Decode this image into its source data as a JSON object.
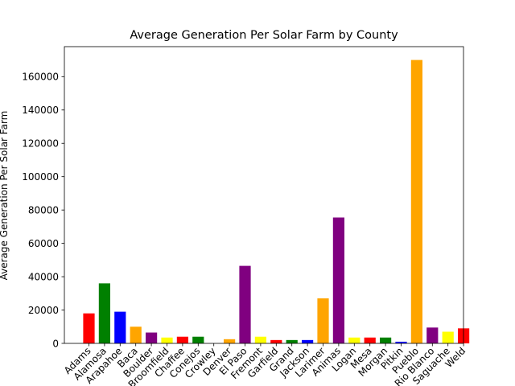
{
  "chart_data": {
    "type": "bar",
    "title": "Average Generation Per Solar Farm by County",
    "xlabel": "",
    "ylabel": "Average Generation Per Solar Farm",
    "ylim": [
      0,
      178000
    ],
    "yticks": [
      0,
      20000,
      40000,
      60000,
      80000,
      100000,
      120000,
      140000,
      160000
    ],
    "grid": false,
    "categories": [
      "Adams",
      "Alamosa",
      "Arapahoe",
      "Baca",
      "Boulder",
      "Broomfield",
      "Chaffee",
      "Conejos",
      "Crowley",
      "Denver",
      "El Paso",
      "Fremont",
      "Garfield",
      "Grand",
      "Jackson",
      "Larimer",
      "Animas",
      "Logan",
      "Mesa",
      "Morgan",
      "Pitkin",
      "Pueblo",
      "Rio Blanco",
      "Saguache",
      "Weld"
    ],
    "values": [
      18000,
      36000,
      19000,
      10000,
      6500,
      3500,
      4000,
      4000,
      0,
      2500,
      46500,
      4000,
      2000,
      2000,
      2000,
      27000,
      75500,
      3500,
      3500,
      3500,
      1000,
      170000,
      9500,
      7000,
      9000
    ],
    "colors": [
      "#ff0000",
      "#008000",
      "#0000ff",
      "#ffa500",
      "#800080",
      "#ffff00",
      "#ff0000",
      "#008000",
      "#0000ff",
      "#ffa500",
      "#800080",
      "#ffff00",
      "#ff0000",
      "#008000",
      "#0000ff",
      "#ffa500",
      "#800080",
      "#ffff00",
      "#ff0000",
      "#008000",
      "#0000ff",
      "#ffa500",
      "#800080",
      "#ffff00",
      "#ff0000"
    ]
  }
}
